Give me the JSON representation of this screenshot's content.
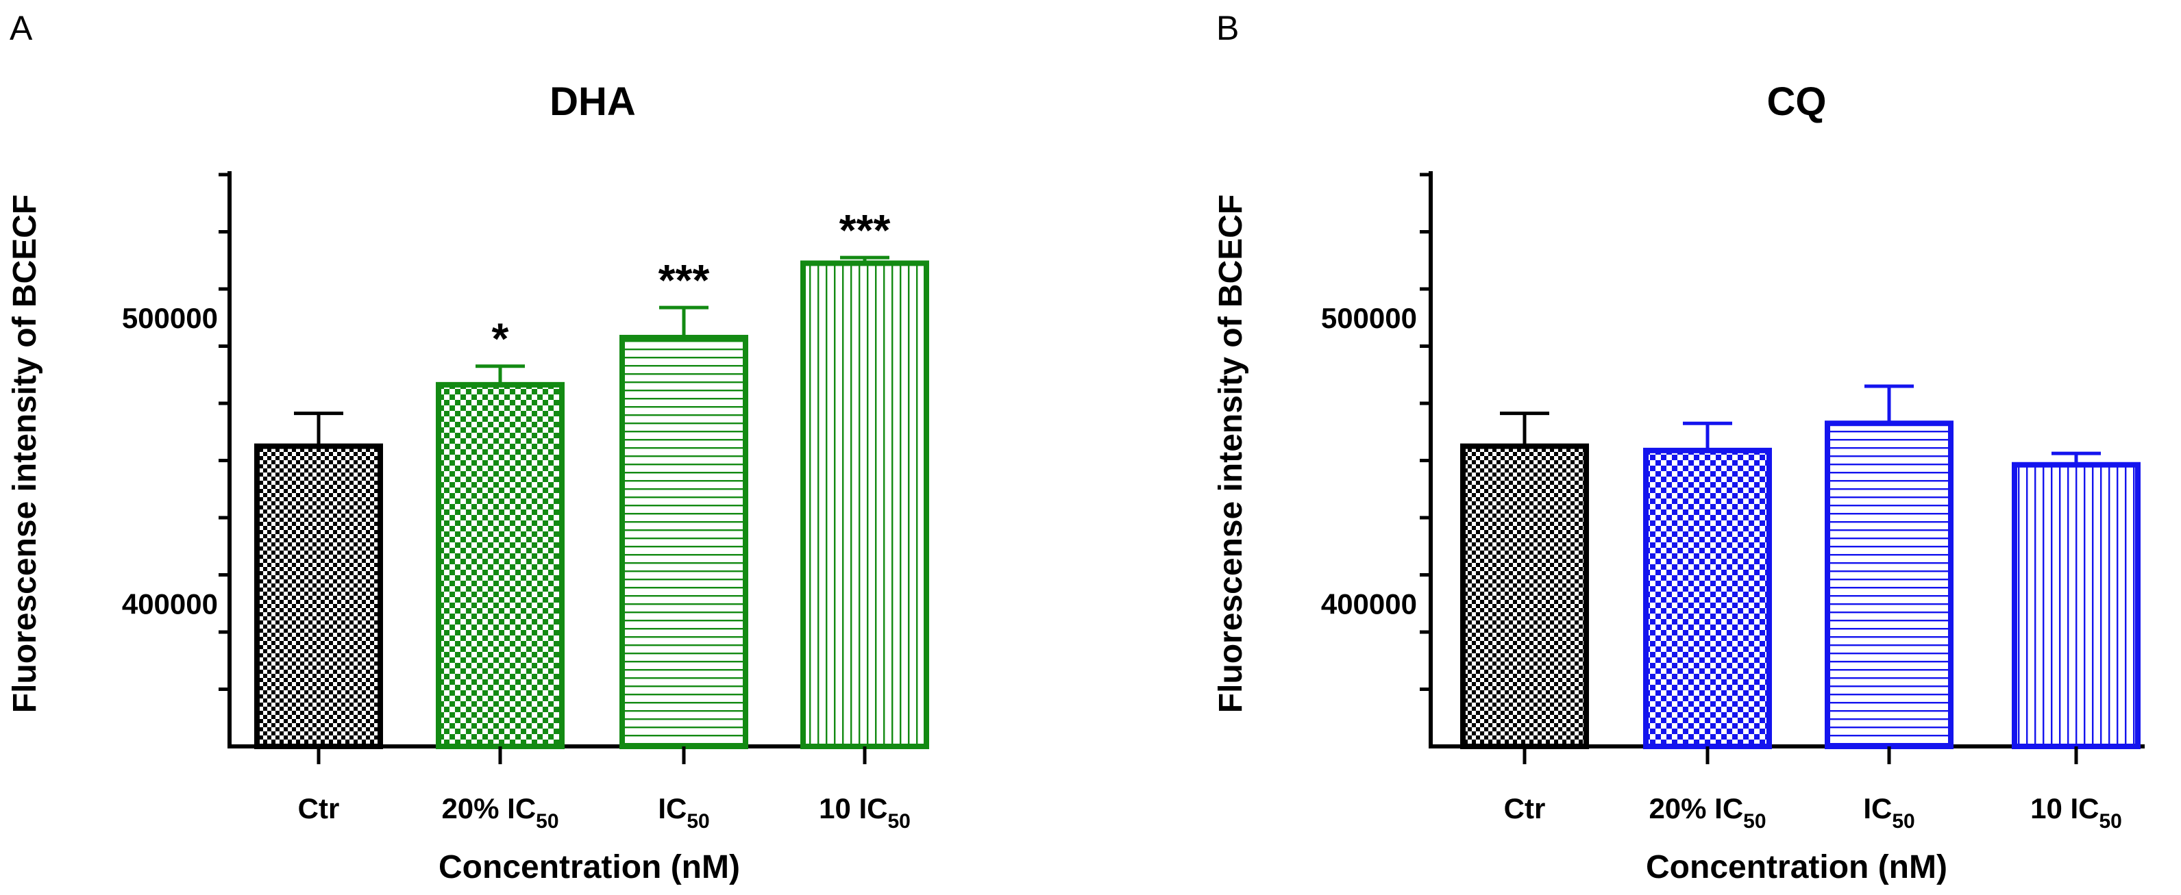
{
  "chart_data": [
    {
      "panel_label": "A",
      "type": "bar",
      "title": "DHA",
      "xlabel": "Concentration (nM)",
      "ylabel": "Fluorescense intensity of BCECF",
      "ylim": [
        350000,
        550000
      ],
      "yticks_labeled": [
        400000,
        500000
      ],
      "yticks_labels": [
        "400000",
        "500000"
      ],
      "ytick_minor_step": 20000,
      "categories": [
        {
          "main": "Ctr",
          "sub": "",
          "suffix": ""
        },
        {
          "main": "20% IC",
          "sub": "50",
          "suffix": ""
        },
        {
          "main": "IC",
          "sub": "50",
          "suffix": ""
        },
        {
          "main": "10 IC",
          "sub": "50",
          "suffix": ""
        }
      ],
      "values": [
        455000,
        476500,
        493000,
        519000
      ],
      "errors": [
        11500,
        6500,
        10500,
        2000
      ],
      "significance": [
        "",
        "*",
        "***",
        "***"
      ],
      "bar_colors": [
        "#000000",
        "#138a13",
        "#138a13",
        "#138a13"
      ],
      "bar_patterns": [
        "checker-fine",
        "checker",
        "horizontal",
        "vertical"
      ],
      "grid": false
    },
    {
      "panel_label": "B",
      "type": "bar",
      "title": "CQ",
      "xlabel": "Concentration (nM)",
      "ylabel": "Fluorescense intensity of BCECF",
      "ylim": [
        350000,
        550000
      ],
      "yticks_labeled": [
        400000,
        500000
      ],
      "yticks_labels": [
        "400000",
        "500000"
      ],
      "ytick_minor_step": 20000,
      "categories": [
        {
          "main": "Ctr",
          "sub": "",
          "suffix": ""
        },
        {
          "main": "20% IC",
          "sub": "50",
          "suffix": ""
        },
        {
          "main": "IC",
          "sub": "50",
          "suffix": ""
        },
        {
          "main": "10 IC",
          "sub": "50",
          "suffix": ""
        }
      ],
      "values": [
        455000,
        453500,
        463000,
        448500
      ],
      "errors": [
        11500,
        9500,
        13000,
        4000
      ],
      "significance": [
        "",
        "",
        "",
        ""
      ],
      "bar_colors": [
        "#000000",
        "#1414ee",
        "#1414ee",
        "#1414ee"
      ],
      "bar_patterns": [
        "checker-fine",
        "checker",
        "horizontal",
        "vertical"
      ],
      "grid": false
    }
  ]
}
